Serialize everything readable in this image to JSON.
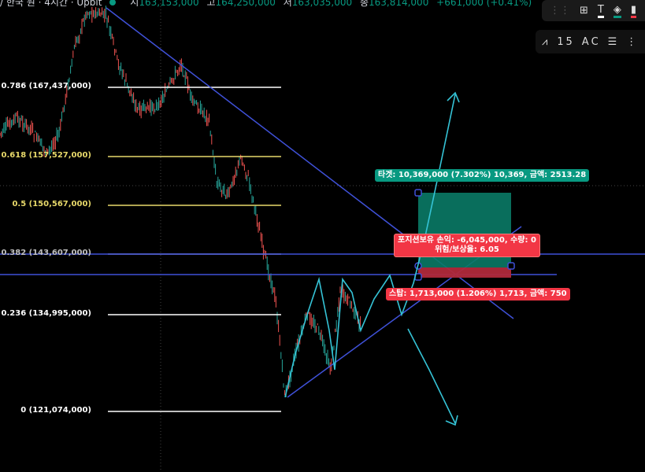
{
  "header": {
    "symbol": "/ 한국 원 · 4시간 · Upbit",
    "open_label": "시",
    "open": "163,153,000",
    "high_label": "고",
    "high": "164,250,000",
    "low_label": "저",
    "low": "163,035,000",
    "close_label": "종",
    "close": "163,814,000",
    "change": "+661,000 (+0.41%)"
  },
  "fib_levels": [
    {
      "label": "0.786 (167,437,000)",
      "color": "#ffffff"
    },
    {
      "label": "0.618 (157,527,000)",
      "color": "#e8d96a"
    },
    {
      "label": "0.5 (150,567,000)",
      "color": "#e8d96a"
    },
    {
      "label": "0.382 (143,607,000)",
      "color": "#c0c0c0"
    },
    {
      "label": "0.236 (134,995,000)",
      "color": "#ffffff"
    },
    {
      "label": "0 (121,074,000)",
      "color": "#ffffff"
    }
  ],
  "position": {
    "target": "타겟: 10,369,000 (7.302%) 10,369, 금액: 2513.28",
    "pnl_line1": "포지션보유 손익: -6,045,000, 수량: 0",
    "pnl_line2": "위험/보상율: 6.05",
    "stop": "스탑: 1,713,000 (1.206%) 1,713, 금액: 750"
  },
  "colors": {
    "up": "#26a69a",
    "down": "#ef5350",
    "target": "#089981",
    "stop": "#f23645",
    "trendline": "#3f51d8",
    "projection": "#35c3d6"
  },
  "toolbar": {
    "row1": [
      "drag-handle-icon",
      "add-widget-icon",
      "text-icon",
      "fill-color-icon",
      "line-color-icon"
    ],
    "row2": [
      "pattern-icon",
      "elliott-impulse-icon",
      "elliott-correction-icon",
      "cycle-lines-icon",
      "more-icon"
    ],
    "elliott_labels": [
      "1",
      "5",
      "A",
      "C"
    ]
  }
}
